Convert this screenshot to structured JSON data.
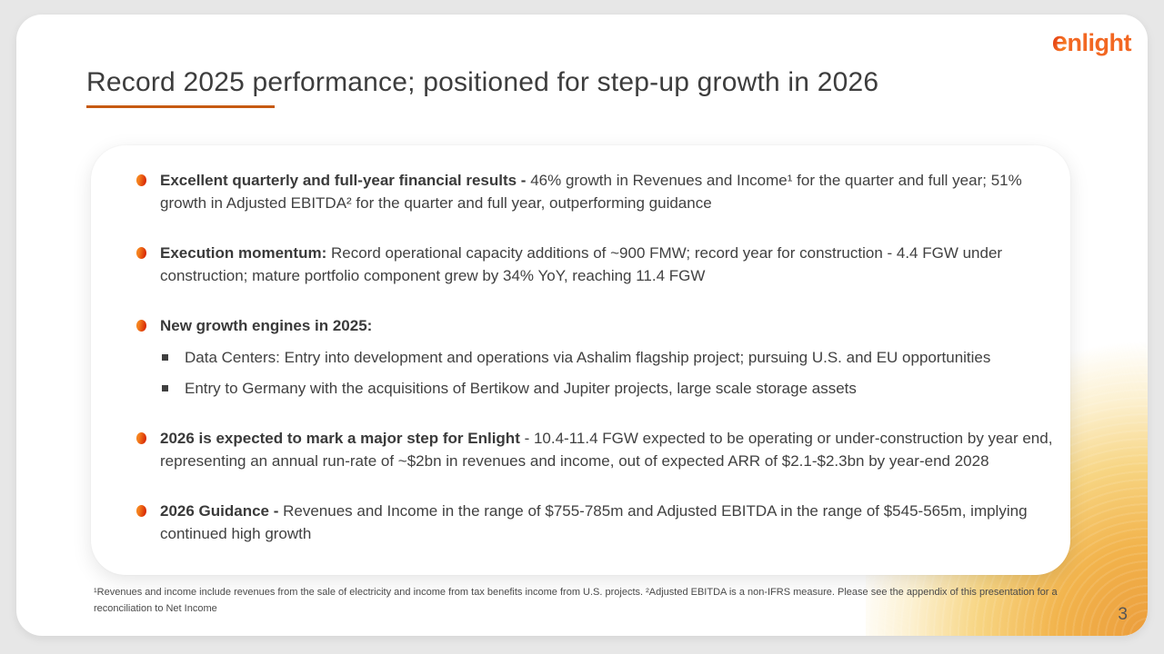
{
  "colors": {
    "background_gray": "#E7E7E7",
    "slide_white": "#FFFFFF",
    "title_text": "#3D3D3D",
    "body_text": "#414141",
    "underline_orange": "#C65A12",
    "logo_orange": "#F26722",
    "bullet_gradient_start": "#F5821E",
    "bullet_gradient_end": "#D92B05",
    "corner_gradient_orange": "#EB9C3B"
  },
  "logo": {
    "first_letter": "e",
    "rest": "nlight"
  },
  "slide": {
    "title": "Record 2025 performance; positioned for step-up growth in 2026",
    "page_number": "3",
    "bullets": [
      {
        "bold": "Excellent quarterly and full-year financial results -",
        "text": " 46% growth in Revenues and Income¹ for the quarter and full year; 51% growth in Adjusted EBITDA² for the quarter and full year, outperforming guidance"
      },
      {
        "bold": "Execution momentum:",
        "text": " Record operational capacity additions of ~900 FMW; record year for construction - 4.4 FGW under construction; mature portfolio component grew by 34% YoY, reaching 11.4 FGW"
      },
      {
        "bold": "New growth engines in 2025:",
        "text": "",
        "sub_bullets": [
          "Data Centers: Entry into development and operations via Ashalim flagship project; pursuing U.S. and EU opportunities",
          "Entry to Germany with the acquisitions of Bertikow and Jupiter projects, large scale storage assets"
        ]
      },
      {
        "bold": "2026 is expected to mark a major step for Enlight",
        "text": " - 10.4-11.4 FGW expected to be operating or under-construction by year end, representing an annual run-rate of ~$2bn in revenues and income, out of expected ARR of $2.1-$2.3bn by year-end 2028"
      },
      {
        "bold": "2026 Guidance -",
        "text": " Revenues and Income in the range of $755-785m and Adjusted EBITDA in the range of $545-565m, implying continued high growth"
      }
    ],
    "footnote": "¹Revenues and income include revenues from the sale of electricity and income from tax benefits income from U.S. projects. ²Adjusted EBITDA is a non-IFRS measure. Please see the appendix of this presentation for a reconciliation to Net Income"
  }
}
